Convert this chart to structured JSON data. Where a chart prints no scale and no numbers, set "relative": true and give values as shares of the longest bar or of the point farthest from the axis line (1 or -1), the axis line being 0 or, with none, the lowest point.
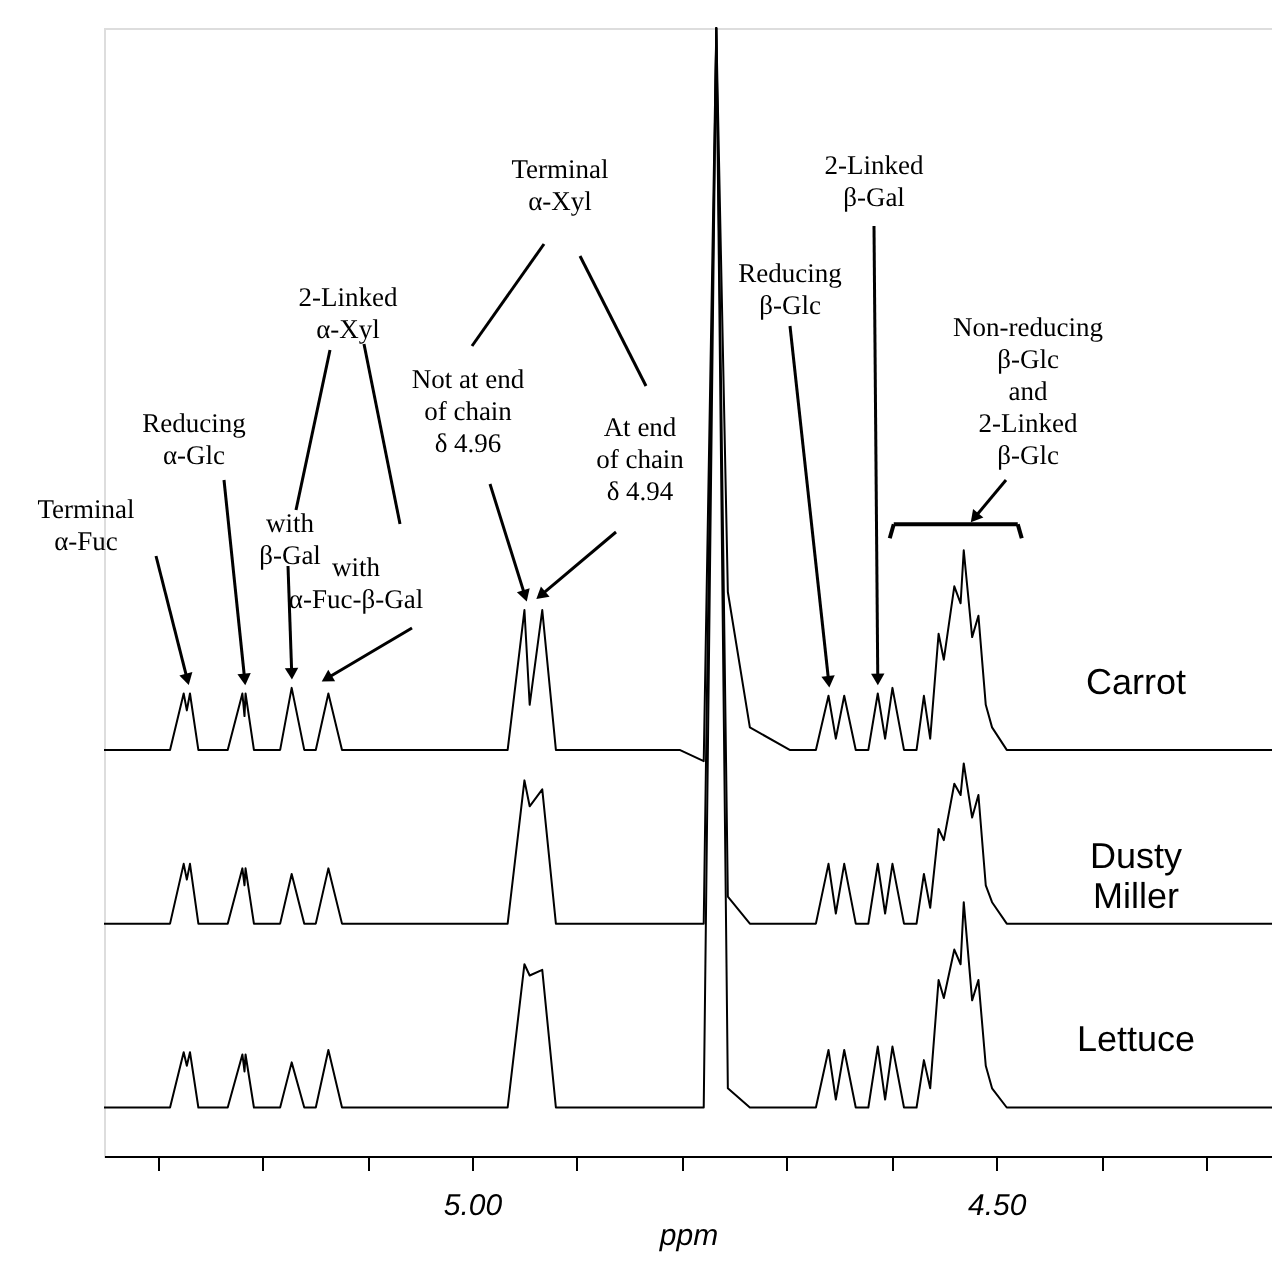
{
  "chart_data": {
    "type": "line",
    "xlabel": "ppm",
    "relative": true,
    "grid": false,
    "xlim": [
      5.351,
      4.237
    ],
    "xticks": [
      {
        "value": 5.3,
        "label": null
      },
      {
        "value": 5.2,
        "label": null
      },
      {
        "value": 5.1,
        "label": null
      },
      {
        "value": 5.0,
        "label": "5.00"
      },
      {
        "value": 4.9,
        "label": null
      },
      {
        "value": 4.8,
        "label": null
      },
      {
        "value": 4.7,
        "label": null
      },
      {
        "value": 4.6,
        "label": null
      },
      {
        "value": 4.5,
        "label": "4.50"
      },
      {
        "value": 4.4,
        "label": null
      },
      {
        "value": 4.3,
        "label": null
      }
    ],
    "x": [
      5.351,
      5.288,
      5.275,
      5.272,
      5.269,
      5.261,
      5.233,
      5.219,
      5.217,
      5.216,
      5.208,
      5.183,
      5.172,
      5.16,
      5.149,
      5.137,
      5.124,
      4.966,
      4.95,
      4.945,
      4.933,
      4.92,
      4.802,
      4.779,
      4.767,
      4.756,
      4.735,
      4.697,
      4.672,
      4.66,
      4.653,
      4.645,
      4.634,
      4.622,
      4.613,
      4.606,
      4.599,
      4.588,
      4.576,
      4.569,
      4.563,
      4.555,
      4.55,
      4.54,
      4.534,
      4.531,
      4.523,
      4.517,
      4.51,
      4.504,
      4.49,
      4.237
    ],
    "series": [
      {
        "name": "Carrot",
        "color": "#000000",
        "values": [
          0.36,
          0.36,
          0.41,
          0.395,
          0.41,
          0.36,
          0.36,
          0.41,
          0.39,
          0.41,
          0.36,
          0.36,
          0.415,
          0.36,
          0.36,
          0.41,
          0.36,
          0.36,
          0.484,
          0.4,
          0.484,
          0.36,
          0.36,
          0.35,
          1,
          0.5,
          0.38,
          0.36,
          0.36,
          0.408,
          0.37,
          0.408,
          0.36,
          0.36,
          0.41,
          0.37,
          0.415,
          0.36,
          0.36,
          0.408,
          0.37,
          0.463,
          0.44,
          0.505,
          0.49,
          0.537,
          0.46,
          0.479,
          0.4,
          0.38,
          0.36,
          0.36
        ]
      },
      {
        "name": "Dusty Miller",
        "color": "#000000",
        "values": [
          0.206,
          0.206,
          0.259,
          0.245,
          0.259,
          0.206,
          0.206,
          0.255,
          0.24,
          0.255,
          0.206,
          0.206,
          0.25,
          0.206,
          0.206,
          0.255,
          0.206,
          0.206,
          0.333,
          0.31,
          0.325,
          0.206,
          0.206,
          0.206,
          1,
          0.23,
          0.206,
          0.206,
          0.206,
          0.259,
          0.215,
          0.259,
          0.206,
          0.206,
          0.259,
          0.215,
          0.259,
          0.206,
          0.206,
          0.25,
          0.22,
          0.29,
          0.28,
          0.33,
          0.32,
          0.348,
          0.3,
          0.32,
          0.24,
          0.225,
          0.206,
          0.206
        ]
      },
      {
        "name": "Lettuce",
        "color": "#000000",
        "values": [
          0.043,
          0.043,
          0.092,
          0.08,
          0.092,
          0.043,
          0.043,
          0.09,
          0.075,
          0.09,
          0.043,
          0.043,
          0.083,
          0.043,
          0.043,
          0.094,
          0.043,
          0.043,
          0.17,
          0.16,
          0.165,
          0.043,
          0.043,
          0.043,
          1,
          0.06,
          0.043,
          0.043,
          0.043,
          0.094,
          0.05,
          0.094,
          0.043,
          0.043,
          0.097,
          0.05,
          0.097,
          0.043,
          0.043,
          0.085,
          0.06,
          0.156,
          0.14,
          0.183,
          0.17,
          0.225,
          0.138,
          0.156,
          0.08,
          0.06,
          0.043,
          0.043
        ]
      }
    ],
    "annotations": [
      {
        "text": "Terminal\nα-Fuc",
        "x": 5.272,
        "y": 0.41
      },
      {
        "text": "Reducing\nα-Glc",
        "x": 5.217,
        "y": 0.41
      },
      "2-Linked\nα-Xyl",
      {
        "text": "with\nβ-Gal",
        "x": 5.172,
        "y": 0.415
      },
      {
        "text": "with\nα-Fuc-β-Gal",
        "x": 5.137,
        "y": 0.41
      },
      "Terminal\nα-Xyl",
      {
        "text": "Not at end\nof chain\nδ 4.96",
        "x": 4.95,
        "y": 0.484
      },
      {
        "text": "At end\nof chain\nδ 4.94",
        "x": 4.933,
        "y": 0.484
      },
      {
        "text": "Reducing\nβ-Glc",
        "x": 4.66,
        "y": 0.408
      },
      {
        "text": "2-Linked\nβ-Gal",
        "x": 4.613,
        "y": 0.41
      },
      {
        "text": "Non-reducing\nβ-Glc\nand\n2-Linked\nβ-Glc",
        "x": 4.531,
        "y": 0.537
      }
    ]
  }
}
